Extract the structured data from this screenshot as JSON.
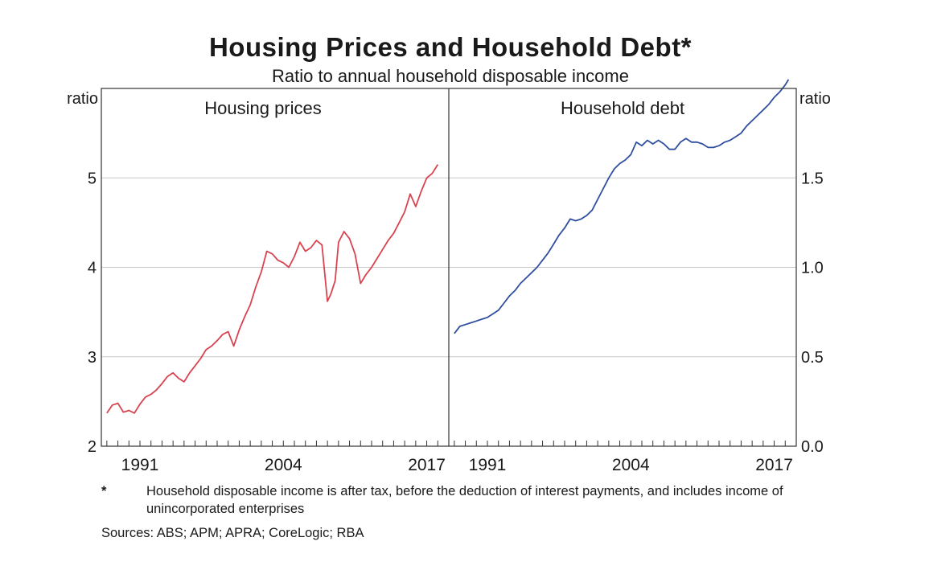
{
  "title": "Housing Prices and Household Debt*",
  "subtitle": "Ratio to annual household disposable income",
  "footnote_marker": "*",
  "footnote_text": "Household disposable income is after tax, before the deduction of interest payments, and includes income of unincorporated enterprises",
  "sources": "Sources: ABS; APM; APRA; CoreLogic; RBA",
  "colors": {
    "housing": "#d9434f",
    "debt": "#2f4f9e",
    "grid": "#c8c8c8",
    "axis": "#333333"
  },
  "chart_data": [
    {
      "type": "line",
      "panel_title": "Housing prices",
      "ylabel": "ratio",
      "ylim": [
        2,
        6
      ],
      "yticks": [
        2,
        3,
        4,
        5
      ],
      "ytick_labels": [
        "2",
        "3",
        "4",
        "5"
      ],
      "xlim": [
        1987.5,
        2019
      ],
      "xticks": [
        1991,
        2004,
        2017
      ],
      "xtick_labels": [
        "1991",
        "2004",
        "2017"
      ],
      "grid": true,
      "series": [
        {
          "color": "#d9434f",
          "x": [
            1988.0,
            1988.5,
            1989.0,
            1989.5,
            1990.0,
            1990.5,
            1991.0,
            1991.5,
            1992.0,
            1992.5,
            1993.0,
            1993.5,
            1994.0,
            1994.5,
            1995.0,
            1995.5,
            1996.0,
            1996.5,
            1997.0,
            1997.5,
            1998.0,
            1998.5,
            1999.0,
            1999.5,
            2000.0,
            2000.5,
            2001.0,
            2001.5,
            2002.0,
            2002.5,
            2003.0,
            2003.5,
            2004.0,
            2004.5,
            2005.0,
            2005.5,
            2006.0,
            2006.5,
            2007.0,
            2007.5,
            2008.0,
            2008.3,
            2008.7,
            2009.0,
            2009.5,
            2010.0,
            2010.5,
            2011.0,
            2011.5,
            2012.0,
            2012.5,
            2013.0,
            2013.5,
            2014.0,
            2014.5,
            2015.0,
            2015.5,
            2016.0,
            2016.5,
            2017.0,
            2017.5,
            2018.0
          ],
          "values": [
            2.37,
            2.46,
            2.48,
            2.38,
            2.4,
            2.37,
            2.47,
            2.55,
            2.58,
            2.63,
            2.7,
            2.78,
            2.82,
            2.76,
            2.72,
            2.82,
            2.9,
            2.98,
            3.08,
            3.12,
            3.18,
            3.25,
            3.28,
            3.12,
            3.3,
            3.45,
            3.58,
            3.78,
            3.95,
            4.18,
            4.15,
            4.08,
            4.05,
            4.0,
            4.12,
            4.28,
            4.18,
            4.22,
            4.3,
            4.25,
            3.62,
            3.7,
            3.85,
            4.28,
            4.4,
            4.32,
            4.15,
            3.82,
            3.92,
            4.0,
            4.1,
            4.2,
            4.3,
            4.38,
            4.5,
            4.62,
            4.82,
            4.68,
            4.85,
            5.0,
            5.05,
            5.15
          ]
        }
      ]
    },
    {
      "type": "line",
      "panel_title": "Household debt",
      "ylabel": "ratio",
      "ylim": [
        0.0,
        2.0
      ],
      "yticks": [
        0.0,
        0.5,
        1.0,
        1.5
      ],
      "ytick_labels": [
        "0.0",
        "0.5",
        "1.0",
        "1.5"
      ],
      "xlim": [
        1987.5,
        2019
      ],
      "xticks": [
        1991,
        2004,
        2017
      ],
      "xtick_labels": [
        "1991",
        "2004",
        "2017"
      ],
      "grid": true,
      "series": [
        {
          "color": "#2f4f9e",
          "x": [
            1988.0,
            1988.5,
            1989.0,
            1989.5,
            1990.0,
            1990.5,
            1991.0,
            1991.5,
            1992.0,
            1992.5,
            1993.0,
            1993.5,
            1994.0,
            1994.5,
            1995.0,
            1995.5,
            1996.0,
            1996.5,
            1997.0,
            1997.5,
            1998.0,
            1998.5,
            1999.0,
            1999.5,
            2000.0,
            2000.5,
            2001.0,
            2001.5,
            2002.0,
            2002.5,
            2003.0,
            2003.5,
            2004.0,
            2004.5,
            2005.0,
            2005.5,
            2006.0,
            2006.5,
            2007.0,
            2007.5,
            2008.0,
            2008.5,
            2009.0,
            2009.5,
            2010.0,
            2010.5,
            2011.0,
            2011.5,
            2012.0,
            2012.5,
            2013.0,
            2013.5,
            2014.0,
            2014.5,
            2015.0,
            2015.5,
            2016.0,
            2016.5,
            2017.0,
            2017.5,
            2018.0,
            2018.3
          ],
          "values": [
            0.63,
            0.67,
            0.68,
            0.69,
            0.7,
            0.71,
            0.72,
            0.74,
            0.76,
            0.8,
            0.84,
            0.87,
            0.91,
            0.94,
            0.97,
            1.0,
            1.04,
            1.08,
            1.13,
            1.18,
            1.22,
            1.27,
            1.26,
            1.27,
            1.29,
            1.32,
            1.38,
            1.44,
            1.5,
            1.55,
            1.58,
            1.6,
            1.63,
            1.7,
            1.68,
            1.71,
            1.69,
            1.71,
            1.69,
            1.66,
            1.66,
            1.7,
            1.72,
            1.7,
            1.7,
            1.69,
            1.67,
            1.67,
            1.68,
            1.7,
            1.71,
            1.73,
            1.75,
            1.79,
            1.82,
            1.85,
            1.88,
            1.91,
            1.95,
            1.98,
            2.02,
            2.05
          ]
        }
      ]
    }
  ]
}
